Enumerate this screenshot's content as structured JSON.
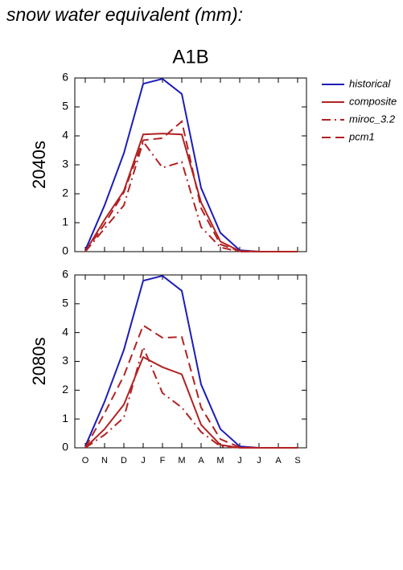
{
  "title": "snow water equivalent (mm):",
  "scenario": "A1B",
  "legend": {
    "position": "right",
    "series": [
      {
        "name": "historical",
        "color": "#1c1cb8",
        "dash": "solid"
      },
      {
        "name": "composite",
        "color": "#b22222",
        "dash": "solid"
      },
      {
        "name": "miroc_3.2",
        "color": "#b22222",
        "dash": "dashdot"
      },
      {
        "name": "pcm1",
        "color": "#b22222",
        "dash": "dashed"
      }
    ]
  },
  "chart_data": [
    {
      "type": "line",
      "ylabel": "2040s",
      "ylim": [
        0,
        6
      ],
      "yticks": [
        0,
        1,
        2,
        3,
        4,
        5,
        6
      ],
      "series": [
        {
          "values": [
            0.05,
            1.6,
            3.4,
            5.8,
            5.97,
            5.45,
            2.2,
            0.65,
            0.05,
            0,
            0,
            0
          ]
        },
        {
          "values": [
            0,
            1.1,
            2.1,
            4.05,
            4.08,
            4.05,
            1.7,
            0.35,
            0.02,
            0,
            0,
            0
          ]
        },
        {
          "values": [
            0,
            0.8,
            1.6,
            3.8,
            2.9,
            3.1,
            0.85,
            0.15,
            0,
            0,
            0,
            0
          ]
        },
        {
          "values": [
            0,
            0.95,
            2.05,
            3.85,
            3.92,
            4.5,
            1.5,
            0.25,
            0.02,
            0,
            0,
            0
          ]
        }
      ]
    },
    {
      "type": "line",
      "ylabel": "2080s",
      "ylim": [
        0,
        6
      ],
      "yticks": [
        0,
        1,
        2,
        3,
        4,
        5,
        6
      ],
      "categories": [
        "O",
        "N",
        "D",
        "J",
        "F",
        "M",
        "A",
        "M",
        "J",
        "J",
        "A",
        "S"
      ],
      "series": [
        {
          "values": [
            0.05,
            1.6,
            3.4,
            5.8,
            5.97,
            5.45,
            2.2,
            0.65,
            0.05,
            0,
            0,
            0
          ]
        },
        {
          "values": [
            0,
            0.65,
            1.5,
            3.15,
            2.8,
            2.55,
            0.8,
            0.1,
            0,
            0,
            0,
            0
          ]
        },
        {
          "values": [
            0,
            0.45,
            1.05,
            3.5,
            1.9,
            1.4,
            0.55,
            0.05,
            0,
            0,
            0,
            0
          ]
        },
        {
          "values": [
            0,
            1.2,
            2.5,
            4.25,
            3.82,
            3.85,
            1.4,
            0.3,
            0.02,
            0,
            0,
            0
          ]
        }
      ]
    }
  ]
}
